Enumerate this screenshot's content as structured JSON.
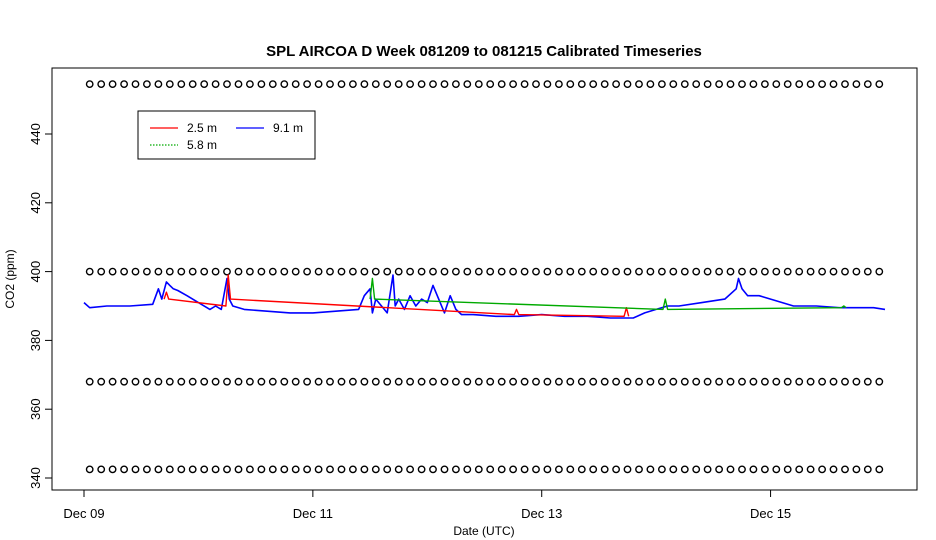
{
  "chart_data": {
    "type": "line",
    "title": "SPL AIRCOA D  Week 081209 to 081215  Calibrated Timeseries",
    "xlabel": "Date (UTC)",
    "ylabel": "CO2 (ppm)",
    "xlim_days": [
      9.0,
      16.0
    ],
    "ylim": [
      340,
      455
    ],
    "xticks": [
      {
        "label": "Dec 09",
        "day": 9.0
      },
      {
        "label": "Dec 11",
        "day": 11.0
      },
      {
        "label": "Dec 13",
        "day": 13.0
      },
      {
        "label": "Dec 15",
        "day": 15.0
      }
    ],
    "yticks": [
      340,
      360,
      380,
      400,
      420,
      440
    ],
    "legend": {
      "position": "top-left",
      "entries": [
        {
          "name": "2.5 m",
          "color": "#ff0000",
          "dash": "solid"
        },
        {
          "name": "5.8 m",
          "color": "#00aa00",
          "dash": "dotted"
        },
        {
          "name": "9.1 m",
          "color": "#0000ff",
          "dash": "solid"
        }
      ]
    },
    "calibration_markers": {
      "marker": "circle",
      "levels": [
        454.5,
        400,
        368,
        342.5
      ],
      "x_start_day": 9.05,
      "x_end_day": 16.0,
      "spacing_days": 0.1
    },
    "series": [
      {
        "name": "9.1 m",
        "color": "#0000ff",
        "x": [
          9.0,
          9.05,
          9.2,
          9.4,
          9.6,
          9.65,
          9.68,
          9.72,
          9.75,
          9.78,
          9.82,
          9.9,
          10.0,
          10.1,
          10.15,
          10.2,
          10.25,
          10.27,
          10.3,
          10.4,
          10.6,
          10.8,
          11.0,
          11.2,
          11.4,
          11.45,
          11.5,
          11.52,
          11.55,
          11.6,
          11.65,
          11.7,
          11.72,
          11.75,
          11.8,
          11.85,
          11.9,
          11.95,
          12.0,
          12.05,
          12.1,
          12.15,
          12.2,
          12.25,
          12.3,
          12.4,
          12.6,
          12.8,
          13.0,
          13.2,
          13.4,
          13.6,
          13.8,
          13.9,
          14.0,
          14.1,
          14.2,
          14.4,
          14.6,
          14.7,
          14.72,
          14.75,
          14.8,
          14.9,
          15.0,
          15.2,
          15.4,
          15.6,
          15.8,
          15.9,
          16.0
        ],
        "y": [
          391,
          389.5,
          390,
          390,
          390.5,
          395,
          392,
          397,
          396,
          395,
          394.5,
          393,
          391,
          389,
          390,
          389,
          398,
          392,
          390,
          389,
          388.5,
          388,
          388,
          388.5,
          389,
          393,
          395,
          388,
          392,
          390,
          388,
          399,
          390,
          392,
          389,
          393,
          390,
          392,
          391,
          396,
          392,
          388,
          393,
          389,
          387.5,
          387.5,
          387,
          387,
          387.5,
          387,
          387,
          386.5,
          386.5,
          388,
          389,
          390,
          390,
          391,
          392,
          395,
          398,
          395,
          393,
          393,
          392,
          390,
          390,
          389.5,
          389.5,
          389.5,
          389
        ]
      },
      {
        "name": "2.5 m",
        "color": "#ff0000",
        "x": [
          9.7,
          9.72,
          9.74,
          10.24,
          10.26,
          10.28,
          12.76,
          12.78,
          12.8,
          13.72,
          13.74,
          13.76
        ],
        "y": [
          392,
          394,
          392,
          390,
          399,
          392,
          387.5,
          389,
          387.5,
          387,
          389.5,
          387
        ]
      },
      {
        "name": "5.8 m",
        "color": "#00aa00",
        "x": [
          11.5,
          11.52,
          11.54,
          14.06,
          14.08,
          14.1,
          15.62,
          15.64,
          15.66
        ],
        "y": [
          392,
          398,
          392,
          389,
          392,
          389,
          389.5,
          390,
          389.5
        ]
      }
    ]
  }
}
